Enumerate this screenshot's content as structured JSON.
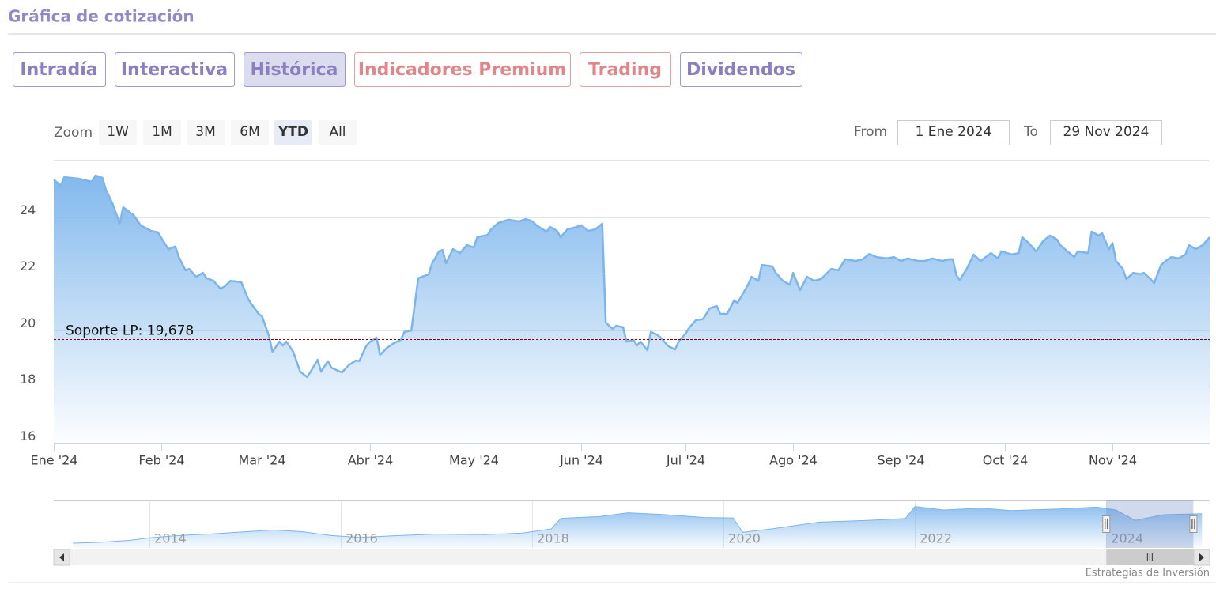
{
  "header": {
    "title": "Gráfica de cotización"
  },
  "tabs": [
    {
      "label": "Intradía",
      "active": false,
      "color": "#8b7fc0"
    },
    {
      "label": "Interactiva",
      "active": false,
      "color": "#8b7fc0"
    },
    {
      "label": "Histórica",
      "active": true,
      "color": "#8b7fc0"
    },
    {
      "label": "Indicadores Premium",
      "active": false,
      "color": "#e0868a"
    },
    {
      "label": "Trading",
      "active": false,
      "color": "#e0868a"
    },
    {
      "label": "Dividendos",
      "active": false,
      "color": "#8b7fc0"
    }
  ],
  "zoom": {
    "label": "Zoom",
    "buttons": [
      "1W",
      "1M",
      "3M",
      "6M",
      "YTD",
      "All"
    ],
    "active": 4
  },
  "range": {
    "from_label": "From",
    "from": "1 Ene 2024",
    "to_label": "To",
    "to": "29 Nov 2024"
  },
  "chart_data": {
    "type": "area",
    "color": "#7cb5ec",
    "grid": true,
    "x": [
      0,
      2,
      3,
      7,
      11,
      12,
      14,
      15,
      17,
      19,
      20,
      23,
      25,
      28,
      30,
      33,
      35,
      36,
      38,
      39,
      41,
      43,
      44,
      46,
      48,
      49,
      51,
      54,
      56,
      57,
      59,
      60,
      62,
      63,
      65,
      66,
      67,
      69,
      71,
      73,
      74,
      76,
      77,
      79,
      80,
      83,
      85,
      87,
      88,
      90,
      91,
      93,
      94,
      96,
      98,
      100,
      101,
      103,
      105,
      108,
      109,
      111,
      112,
      113,
      115,
      117,
      119,
      121,
      122,
      125,
      126,
      128,
      131,
      134,
      136,
      138,
      139,
      142,
      143,
      145,
      146,
      148,
      150,
      152,
      154,
      156,
      158,
      159,
      161,
      162,
      164,
      165,
      167,
      168,
      169,
      171,
      172,
      174,
      175,
      177,
      179,
      180,
      182,
      183,
      185,
      187,
      189,
      191,
      192,
      194,
      196,
      197,
      200,
      201,
      203,
      204,
      207,
      208,
      210,
      212,
      213,
      215,
      217,
      219,
      221,
      224,
      226,
      228,
      231,
      233,
      235,
      237,
      240,
      242,
      244,
      246,
      249,
      251,
      253,
      256,
      258,
      259,
      260,
      261,
      263,
      265,
      267,
      270,
      272,
      273,
      276,
      278,
      279,
      281,
      283,
      285,
      287,
      289,
      290,
      292,
      294,
      295,
      298,
      299,
      301,
      302,
      304,
      305,
      306,
      308,
      309,
      311,
      313,
      314,
      316,
      317,
      319,
      321,
      322,
      324,
      326,
      327,
      329,
      331,
      333
    ],
    "values": [
      25.33,
      25.11,
      25.41,
      25.36,
      25.25,
      25.47,
      25.39,
      24.97,
      24.46,
      23.77,
      24.35,
      24.07,
      23.71,
      23.51,
      23.46,
      22.87,
      22.96,
      22.59,
      22.12,
      22.17,
      21.89,
      22.03,
      21.84,
      21.75,
      21.47,
      21.53,
      21.75,
      21.7,
      21.11,
      20.92,
      20.58,
      20.5,
      19.8,
      19.24,
      19.6,
      19.46,
      19.6,
      19.24,
      18.54,
      18.35,
      18.54,
      18.96,
      18.54,
      18.91,
      18.68,
      18.51,
      18.77,
      18.93,
      18.91,
      19.44,
      19.58,
      19.74,
      19.13,
      19.38,
      19.55,
      19.66,
      19.94,
      19.99,
      21.84,
      21.98,
      22.37,
      22.79,
      22.84,
      22.37,
      22.87,
      22.73,
      23.01,
      22.93,
      23.29,
      23.37,
      23.57,
      23.79,
      23.91,
      23.85,
      23.93,
      23.85,
      23.71,
      23.49,
      23.65,
      23.51,
      23.29,
      23.57,
      23.63,
      23.71,
      23.51,
      23.57,
      23.77,
      20.27,
      20.05,
      20.16,
      20.11,
      19.6,
      19.66,
      19.46,
      19.6,
      19.3,
      19.94,
      19.83,
      19.72,
      19.44,
      19.32,
      19.6,
      19.88,
      20.08,
      20.36,
      20.39,
      20.78,
      20.86,
      20.58,
      20.58,
      21.06,
      20.97,
      21.61,
      21.89,
      21.75,
      22.31,
      22.26,
      22.03,
      21.75,
      21.61,
      22.03,
      21.42,
      21.89,
      21.75,
      21.81,
      22.17,
      22.12,
      22.51,
      22.45,
      22.51,
      22.7,
      22.59,
      22.54,
      22.59,
      22.45,
      22.54,
      22.45,
      22.45,
      22.54,
      22.45,
      22.51,
      22.51,
      21.95,
      21.78,
      22.17,
      22.68,
      22.45,
      22.73,
      22.54,
      22.79,
      22.68,
      22.73,
      23.29,
      23.07,
      22.79,
      23.15,
      23.35,
      23.21,
      23.01,
      22.79,
      22.59,
      22.79,
      22.73,
      23.49,
      23.35,
      23.43,
      22.87,
      23.09,
      22.45,
      22.17,
      21.81,
      22.03,
      21.98,
      22.03,
      21.81,
      21.67,
      22.31,
      22.51,
      22.59,
      22.54,
      22.68,
      23.01,
      22.87,
      23.01,
      23.29
    ],
    "xlim": [
      0,
      333
    ],
    "xticks": [
      {
        "value": 0,
        "label": "Ene '24"
      },
      {
        "value": 31,
        "label": "Feb '24"
      },
      {
        "value": 60,
        "label": "Mar '24"
      },
      {
        "value": 91,
        "label": "Abr '24"
      },
      {
        "value": 121,
        "label": "May '24"
      },
      {
        "value": 152,
        "label": "Jun '24"
      },
      {
        "value": 182,
        "label": "Jul '24"
      },
      {
        "value": 213,
        "label": "Ago '24"
      },
      {
        "value": 244,
        "label": "Sep '24"
      },
      {
        "value": 274,
        "label": "Oct '24"
      },
      {
        "value": 305,
        "label": "Nov '24"
      }
    ],
    "ylim": [
      16,
      26
    ],
    "yticks": [
      16,
      18,
      20,
      22,
      24
    ],
    "annotations": [
      {
        "label": "Soporte LP: 19,678",
        "value": 19.678,
        "color": "#8b0000"
      }
    ],
    "navigator": {
      "type": "area",
      "x": [
        2013.2,
        2013.5,
        2013.8,
        2014,
        2014.3,
        2014.7,
        2015,
        2015.3,
        2015.6,
        2015.9,
        2016.2,
        2016.6,
        2017,
        2017.5,
        2017.9,
        2018.2,
        2018.3,
        2018.7,
        2019,
        2019.4,
        2019.8,
        2020.1,
        2020.2,
        2020.5,
        2021,
        2021.5,
        2021.9,
        2022,
        2022.3,
        2022.7,
        2023,
        2023.5,
        2023.9,
        2024.1,
        2024.3,
        2024.6,
        2025
      ],
      "values": [
        7.5,
        8,
        9,
        10.3,
        11.5,
        12.5,
        13.5,
        14.4,
        13.5,
        11.5,
        10.5,
        11.5,
        12.3,
        12,
        12.8,
        15,
        20.6,
        21.5,
        23.5,
        22.5,
        21,
        20.8,
        13.2,
        15,
        18.6,
        19.5,
        20.5,
        26.8,
        25,
        26,
        24.7,
        25.5,
        26.5,
        25,
        19.5,
        22.5,
        23
      ],
      "xlim": [
        2013,
        2025.08
      ],
      "ylim": [
        5,
        30
      ],
      "xticks": [
        2014,
        2016,
        2018,
        2020,
        2022,
        2024
      ],
      "selection": [
        2024.0,
        2024.91
      ]
    }
  },
  "footer": {
    "credit": "Estrategias de Inversión"
  }
}
